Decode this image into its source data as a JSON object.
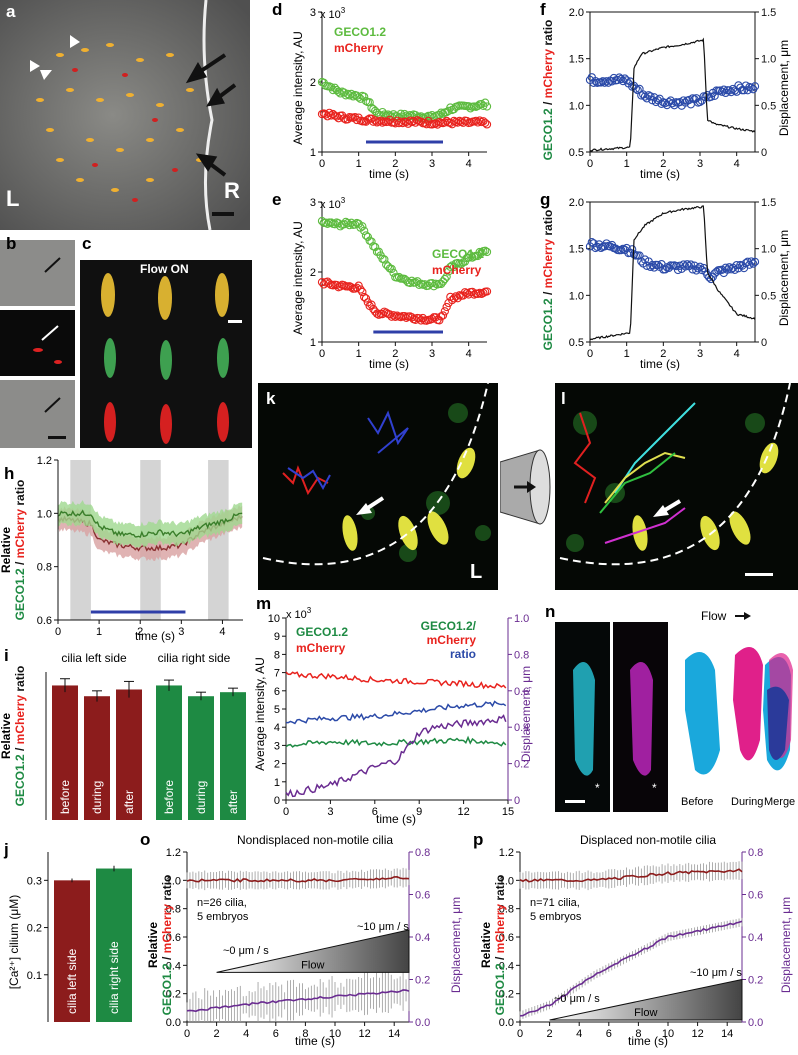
{
  "panels": {
    "a": {
      "label": "a",
      "left_label": "L",
      "right_label": "R"
    },
    "b": {
      "label": "b"
    },
    "c": {
      "label": "c",
      "flow_text": "Flow ON"
    },
    "d": {
      "label": "d",
      "exp": "x 10",
      "sup": "3",
      "ylabel": "Average intensity, AU",
      "xlabel": "time (s)",
      "s1": "GECO1.2",
      "s2": "mCherry",
      "yticks": [
        "1",
        "2",
        "3"
      ],
      "xticks": [
        "0",
        "1",
        "2",
        "3",
        "4"
      ]
    },
    "e": {
      "label": "e",
      "exp": "x 10",
      "sup": "3",
      "ylabel": "Average intensity, AU",
      "xlabel": "time (s)",
      "s1": "GECO1.2",
      "s2": "mCherry",
      "yticks": [
        "1",
        "2",
        "3"
      ],
      "xticks": [
        "0",
        "1",
        "2",
        "3",
        "4"
      ]
    },
    "f": {
      "label": "f",
      "ylabel_a": "GECO1.2",
      "ylabel_b": " / ",
      "ylabel_c": "mCherry",
      "ylabel_d": " ratio",
      "y2label": "Displacement, μm",
      "xlabel": "time (s)",
      "yticks": [
        "0.5",
        "1.0",
        "1.5",
        "2.0"
      ],
      "y2ticks": [
        "0",
        "0.5",
        "1.0",
        "1.5"
      ],
      "xticks": [
        "0",
        "1",
        "2",
        "3",
        "4"
      ]
    },
    "g": {
      "label": "g",
      "ylabel_a": "GECO1.2",
      "ylabel_b": " / ",
      "ylabel_c": "mCherry",
      "ylabel_d": " ratio",
      "y2label": "Displacement, μm",
      "xlabel": "time (s)",
      "yticks": [
        "0.5",
        "1.0",
        "1.5",
        "2.0"
      ],
      "y2ticks": [
        "0",
        "0.5",
        "1.0",
        "1.5"
      ],
      "xticks": [
        "0",
        "1",
        "2",
        "3",
        "4"
      ]
    },
    "h": {
      "label": "h",
      "ylabel1": "Relative",
      "ylabel_a": "GECO1.2",
      "ylabel_b": " / ",
      "ylabel_c": "mCherry",
      "ylabel_d": " ratio",
      "xlabel": "time (s)",
      "yticks": [
        "0.6",
        "0.8",
        "1.0",
        "1.2"
      ],
      "xticks": [
        "0",
        "1",
        "2",
        "3",
        "4"
      ]
    },
    "i": {
      "label": "i",
      "left_title": "cilia left side",
      "right_title": "cilia right side",
      "bars": [
        "before",
        "during",
        "after",
        "before",
        "during",
        "after"
      ],
      "ylabel1": "Relative",
      "ylabel_a": "GECO1.2",
      "ylabel_b": " / ",
      "ylabel_c": "mCherry",
      "ylabel_d": " ratio"
    },
    "j": {
      "label": "j",
      "ylabel": "[Ca²⁺] cilium (μM)",
      "yticks": [
        "0.1",
        "0.2",
        "0.3"
      ],
      "bars": [
        "cilia left side",
        "cilia right side"
      ]
    },
    "k": {
      "label": "k",
      "corner": "L"
    },
    "l": {
      "label": "l"
    },
    "m": {
      "label": "m",
      "exp": "x 10",
      "sup": "3",
      "ylabel": "Average intensity, AU",
      "y2label": "Displacement, μm",
      "xlabel": "time (s)",
      "s1": "GECO1.2",
      "s2": "mCherry",
      "r1": "GECO1.2/",
      "r2": "mCherry",
      "r3": "ratio",
      "yticks": [
        "0",
        "1",
        "2",
        "3",
        "4",
        "5",
        "6",
        "7",
        "8",
        "9",
        "10"
      ],
      "y2ticks": [
        "0",
        "0.2",
        "0.4",
        "0.6",
        "0.8",
        "1.0"
      ],
      "xticks": [
        "0",
        "3",
        "6",
        "9",
        "12",
        "15"
      ]
    },
    "n": {
      "label": "n",
      "flow": "Flow",
      "before": "Before",
      "during": "During",
      "merge": "Merge"
    },
    "o": {
      "label": "o",
      "title": "Nondisplaced non-motile cilia",
      "n1": "n=26 cilia,",
      "n2": "5 embryos",
      "flow": "Flow",
      "v0": "~0 μm / s",
      "v10": "~10 μm / s",
      "ylabel1": "Relative",
      "ylabel_a": "GECO1.2",
      "ylabel_b": " / ",
      "ylabel_c": "mCherry",
      "ylabel_d": " ratio",
      "y2label": "Displacement, μm",
      "xlabel": "time (s)",
      "yticks": [
        "0.0",
        "0.2",
        "0.4",
        "0.6",
        "0.8",
        "1.0",
        "1.2"
      ],
      "y2ticks": [
        "0.0",
        "0.2",
        "0.4",
        "0.6",
        "0.8"
      ],
      "xticks": [
        "0",
        "2",
        "4",
        "6",
        "8",
        "10",
        "12",
        "14"
      ]
    },
    "p": {
      "label": "p",
      "title": "Displaced non-motile cilia",
      "n1": "n=71 cilia,",
      "n2": "5 embryos",
      "flow": "Flow",
      "v0": "~0 μm / s",
      "v10": "~10 μm / s",
      "ylabel1": "Relative",
      "ylabel_a": "GECO1.2",
      "ylabel_b": " / ",
      "ylabel_c": "mCherry",
      "ylabel_d": " ratio",
      "y2label": "Displacement, μm",
      "xlabel": "time (s)",
      "yticks": [
        "0.0",
        "0.2",
        "0.4",
        "0.6",
        "0.8",
        "1.0",
        "1.2"
      ],
      "y2ticks": [
        "0.0",
        "0.2",
        "0.4",
        "0.6",
        "0.8"
      ],
      "xticks": [
        "0",
        "2",
        "4",
        "6",
        "8",
        "10",
        "12",
        "14"
      ]
    }
  },
  "colors": {
    "geco": "#5dbb3f",
    "mcherry": "#e8231e",
    "ratio": "#2b4aa8",
    "disp": "#6a2c91",
    "darkred": "#8c1c1c",
    "green_bar": "#1e8a43",
    "stim": "#2f3fa8"
  },
  "chart_data": [
    {
      "panel": "d",
      "type": "scatter",
      "xlim": [
        0,
        4.5
      ],
      "ylim": [
        1,
        3
      ],
      "ylabel": "Average intensity, AU",
      "xlabel": "time (s)",
      "series": [
        {
          "name": "GECO1.2",
          "x": [
            0,
            0.5,
            1.0,
            1.2,
            1.5,
            2.0,
            2.5,
            3.0,
            3.3,
            3.5,
            4.0,
            4.5
          ],
          "y": [
            2.0,
            1.85,
            1.8,
            1.75,
            1.55,
            1.52,
            1.52,
            1.5,
            1.55,
            1.62,
            1.65,
            1.68
          ]
        },
        {
          "name": "mCherry",
          "x": [
            0,
            0.5,
            1.0,
            1.5,
            2.0,
            2.5,
            3.0,
            3.5,
            4.0,
            4.5
          ],
          "y": [
            1.55,
            1.5,
            1.47,
            1.45,
            1.44,
            1.43,
            1.42,
            1.42,
            1.42,
            1.42
          ]
        }
      ],
      "stimulus": [
        1.2,
        3.3
      ]
    },
    {
      "panel": "e",
      "type": "scatter",
      "xlim": [
        0,
        4.5
      ],
      "ylim": [
        1,
        3
      ],
      "ylabel": "Average intensity, AU",
      "xlabel": "time (s)",
      "series": [
        {
          "name": "GECO1.2",
          "x": [
            0,
            0.5,
            1.0,
            1.2,
            1.5,
            2.0,
            2.5,
            3.0,
            3.3,
            3.5,
            4.0,
            4.5
          ],
          "y": [
            2.7,
            2.68,
            2.7,
            2.55,
            2.3,
            1.95,
            1.85,
            1.82,
            1.85,
            2.05,
            2.2,
            2.3
          ]
        },
        {
          "name": "mCherry",
          "x": [
            0,
            0.5,
            1.0,
            1.2,
            1.5,
            2.0,
            2.5,
            3.0,
            3.3,
            3.5,
            4.0,
            4.5
          ],
          "y": [
            1.85,
            1.8,
            1.78,
            1.6,
            1.42,
            1.38,
            1.35,
            1.32,
            1.35,
            1.62,
            1.7,
            1.72
          ]
        }
      ],
      "stimulus": [
        1.4,
        3.3
      ]
    },
    {
      "panel": "f",
      "type": "line",
      "xlim": [
        0,
        4.5
      ],
      "ylim": [
        0.5,
        2.0
      ],
      "y2lim": [
        0,
        1.5
      ],
      "series": [
        {
          "name": "GECO1.2 / mCherry ratio",
          "x": [
            0,
            1.0,
            1.2,
            1.5,
            2.0,
            2.5,
            3.0,
            3.3,
            3.5,
            4.0,
            4.5
          ],
          "y": [
            1.27,
            1.27,
            1.2,
            1.1,
            1.04,
            1.03,
            1.05,
            1.1,
            1.15,
            1.18,
            1.18
          ]
        },
        {
          "name": "Displacement, μm",
          "x": [
            0,
            1.1,
            1.2,
            1.4,
            2.0,
            2.5,
            3.1,
            3.2,
            3.4,
            4.0,
            4.5
          ],
          "y": [
            0.02,
            0.05,
            0.9,
            1.05,
            1.12,
            1.15,
            1.2,
            0.35,
            0.3,
            0.25,
            0.22
          ]
        }
      ]
    },
    {
      "panel": "g",
      "type": "line",
      "xlim": [
        0,
        4.5
      ],
      "ylim": [
        0.5,
        2.0
      ],
      "y2lim": [
        0,
        1.5
      ],
      "series": [
        {
          "name": "GECO1.2 / mCherry ratio",
          "x": [
            0,
            1.0,
            1.2,
            1.5,
            2.0,
            2.5,
            3.0,
            3.3,
            3.5,
            4.0,
            4.5
          ],
          "y": [
            1.55,
            1.5,
            1.45,
            1.35,
            1.3,
            1.3,
            1.3,
            1.2,
            1.25,
            1.3,
            1.35
          ]
        },
        {
          "name": "Displacement, μm",
          "x": [
            0,
            1.1,
            1.2,
            1.5,
            2.0,
            2.5,
            3.1,
            3.2,
            3.5,
            4.0,
            4.5
          ],
          "y": [
            0.03,
            0.1,
            1.1,
            1.25,
            1.38,
            1.42,
            1.45,
            0.75,
            0.55,
            0.3,
            0.25
          ]
        }
      ]
    },
    {
      "panel": "h",
      "type": "line",
      "xlim": [
        0,
        4.5
      ],
      "ylim": [
        0.6,
        1.2
      ],
      "shaded": [
        [
          0.3,
          0.8
        ],
        [
          2.0,
          2.5
        ],
        [
          3.65,
          4.15
        ]
      ],
      "stimulus": [
        0.8,
        3.1
      ],
      "series": [
        {
          "name": "GECO1.2",
          "x": [
            0,
            0.5,
            0.8,
            1.0,
            1.5,
            2.0,
            2.5,
            3.0,
            3.5,
            4.0,
            4.5
          ],
          "y": [
            1.0,
            1.0,
            1.0,
            0.95,
            0.92,
            0.92,
            0.93,
            0.92,
            0.95,
            0.97,
            1.0
          ]
        },
        {
          "name": "mCherry",
          "x": [
            0,
            0.5,
            0.8,
            1.0,
            1.5,
            2.0,
            2.5,
            3.0,
            3.5,
            4.0,
            4.5
          ],
          "y": [
            0.98,
            0.97,
            0.96,
            0.9,
            0.88,
            0.87,
            0.87,
            0.88,
            0.93,
            0.96,
            0.99
          ]
        }
      ]
    },
    {
      "panel": "i",
      "type": "bar",
      "categories": [
        "before",
        "during",
        "after",
        "before",
        "during",
        "after"
      ],
      "values": [
        1.0,
        0.92,
        0.97,
        1.0,
        0.92,
        0.95
      ],
      "errors": [
        0.05,
        0.04,
        0.06,
        0.04,
        0.03,
        0.03
      ]
    },
    {
      "panel": "j",
      "type": "bar",
      "categories": [
        "cilia left side",
        "cilia right side"
      ],
      "values": [
        0.3,
        0.325
      ],
      "errors": [
        0.004,
        0.006
      ],
      "ylim": [
        0,
        0.36
      ]
    },
    {
      "panel": "m",
      "type": "line",
      "xlim": [
        0,
        15
      ],
      "ylim": [
        0,
        10
      ],
      "y2lim": [
        0,
        1.0
      ],
      "series": [
        {
          "name": "mCherry",
          "x": [
            0,
            3,
            6,
            9,
            12,
            15
          ],
          "y": [
            6.9,
            6.8,
            6.6,
            6.5,
            6.4,
            6.2
          ]
        },
        {
          "name": "ratio",
          "x": [
            0,
            3,
            6,
            9,
            12,
            15
          ],
          "y": [
            4.3,
            4.5,
            4.6,
            4.9,
            5.2,
            5.3
          ]
        },
        {
          "name": "GECO1.2",
          "x": [
            0,
            3,
            6,
            9,
            12,
            15
          ],
          "y": [
            3.0,
            3.2,
            3.1,
            3.2,
            3.3,
            3.1
          ]
        },
        {
          "name": "Displacement",
          "x": [
            0,
            3,
            6,
            7.5,
            9,
            10,
            12,
            15
          ],
          "y": [
            0.03,
            0.08,
            0.18,
            0.22,
            0.37,
            0.4,
            0.42,
            0.45
          ]
        }
      ]
    },
    {
      "panel": "o",
      "type": "line",
      "xlim": [
        0,
        15
      ],
      "ylim": [
        0,
        1.2
      ],
      "y2lim": [
        0,
        0.8
      ],
      "series": [
        {
          "name": "ratio",
          "x": [
            0,
            5,
            10,
            15
          ],
          "y": [
            1.0,
            1.0,
            1.0,
            1.02
          ]
        },
        {
          "name": "Displacement",
          "x": [
            0,
            5,
            10,
            15
          ],
          "y": [
            0.05,
            0.09,
            0.12,
            0.15
          ]
        }
      ]
    },
    {
      "panel": "p",
      "type": "line",
      "xlim": [
        0,
        15
      ],
      "ylim": [
        0,
        1.2
      ],
      "y2lim": [
        0,
        0.8
      ],
      "series": [
        {
          "name": "ratio",
          "x": [
            0,
            5,
            10,
            15
          ],
          "y": [
            1.0,
            1.0,
            1.05,
            1.07
          ]
        },
        {
          "name": "Displacement",
          "x": [
            0,
            2,
            5,
            10,
            15
          ],
          "y": [
            0.03,
            0.08,
            0.22,
            0.4,
            0.47
          ]
        }
      ]
    }
  ]
}
